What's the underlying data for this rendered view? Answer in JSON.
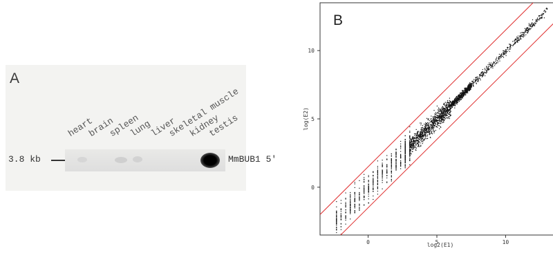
{
  "panel_a": {
    "letter": "A",
    "lanes": [
      "heart",
      "brain",
      "spleen",
      "lung",
      "liver",
      "skeletal muscle",
      "kidney",
      "testis"
    ],
    "size_marker": "3.8 kb",
    "probe_label": "MmBUB1 5'"
  },
  "panel_b": {
    "letter": "B"
  },
  "chart_data": {
    "type": "scatter",
    "xlabel": "log2(E1)",
    "ylabel": "log(E2)",
    "xlim": [
      -3.5,
      13.5
    ],
    "ylim": [
      -3.5,
      13.5
    ],
    "xticks": [
      "0",
      "5",
      "10"
    ],
    "yticks": [
      "0",
      "5",
      "10"
    ],
    "reference_lines": [
      {
        "intercept": 1.5,
        "slope": 1,
        "color": "#e03030"
      },
      {
        "intercept": -1.5,
        "slope": 1,
        "color": "#e03030"
      }
    ],
    "series": [
      {
        "color": "#111111",
        "trend": "y ≈ x, dense cloud from 0 to 13"
      }
    ]
  }
}
